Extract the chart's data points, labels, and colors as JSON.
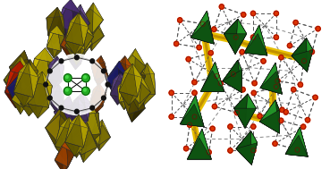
{
  "figure_width": 3.69,
  "figure_height": 1.89,
  "dpi": 100,
  "background_color": "#ffffff",
  "left": {
    "yellow1": "#d4c000",
    "yellow2": "#c8b800",
    "olive": "#8b7800",
    "dark_olive": "#6b5c00",
    "purple": "#7755aa",
    "dark_purple": "#553388",
    "orange": "#cc5500",
    "red": "#cc2200",
    "dark_blue": "#222288",
    "navy": "#111166",
    "green_atom": "#22aa22",
    "black_node": "#111111",
    "white_ring": "#ffffff"
  },
  "right": {
    "green_tet": "#1a8020",
    "green_tet_dark": "#0d5010",
    "green_tet_light": "#2ab030",
    "yellow_bond_outer": "#e8c000",
    "yellow_bond_inner": "#c09000",
    "red_node": "#dd3300",
    "dash_color": "#555555",
    "bg": "#ffffff"
  }
}
